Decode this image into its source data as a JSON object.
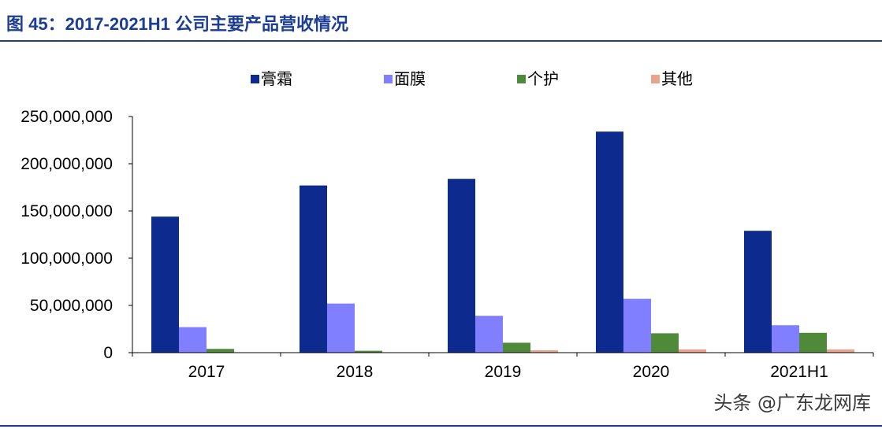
{
  "header": {
    "title": "图 45：2017-2021H1 公司主要产品营收情况"
  },
  "chart_data": {
    "type": "bar",
    "categories": [
      "2017",
      "2018",
      "2019",
      "2020",
      "2021H1"
    ],
    "series": [
      {
        "name": "膏霜",
        "color": "#0d2a8e",
        "values": [
          144000000,
          177000000,
          184000000,
          234000000,
          129000000
        ]
      },
      {
        "name": "面膜",
        "color": "#7f7fff",
        "values": [
          27000000,
          52000000,
          39000000,
          57000000,
          29000000
        ]
      },
      {
        "name": "个护",
        "color": "#4f8a3b",
        "values": [
          4000000,
          2000000,
          10500000,
          20500000,
          21000000
        ]
      },
      {
        "name": "其他",
        "color": "#e8a48c",
        "values": [
          0,
          0,
          2500000,
          3500000,
          3500000
        ]
      }
    ],
    "ylim": [
      0,
      250000000
    ],
    "ytick_labels": [
      "0",
      "50,000,000",
      "100,000,000",
      "150,000,000",
      "200,000,000",
      "250,000,000"
    ],
    "grid": false,
    "legend": "top"
  },
  "watermark": "头条 @广东龙网库"
}
